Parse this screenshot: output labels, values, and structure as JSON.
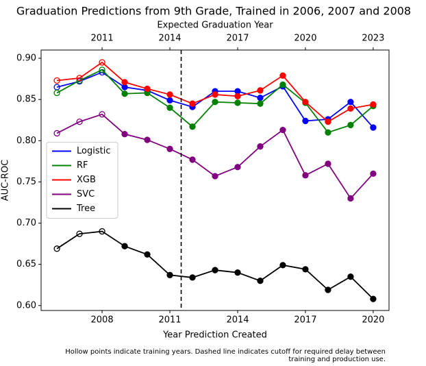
{
  "chart_data": {
    "type": "line",
    "title": "Graduation Predictions from 9th Grade, Trained in 2006, 2007 and 2008",
    "xlabel": "Year Prediction Created",
    "ylabel": "AUC-ROC",
    "x2label": "Expected Graduation Year",
    "footnote": [
      "Hollow points indicate training years. Dashed line indicates cutoff for required delay between",
      "training and production use."
    ],
    "x": [
      2006,
      2007,
      2008,
      2009,
      2010,
      2011,
      2012,
      2013,
      2014,
      2015,
      2016,
      2017,
      2018,
      2019,
      2020
    ],
    "series": [
      {
        "name": "Logistic",
        "color": "#0000ff",
        "values": [
          0.865,
          0.872,
          0.883,
          0.865,
          0.861,
          0.849,
          0.841,
          0.86,
          0.86,
          0.852,
          0.866,
          0.824,
          0.826,
          0.847,
          0.816
        ]
      },
      {
        "name": "RF",
        "color": "#008000",
        "values": [
          0.858,
          0.873,
          0.886,
          0.857,
          0.858,
          0.84,
          0.817,
          0.847,
          0.846,
          0.845,
          0.868,
          0.846,
          0.81,
          0.819,
          0.842
        ]
      },
      {
        "name": "XGB",
        "color": "#ff0000",
        "values": [
          0.873,
          0.876,
          0.895,
          0.871,
          0.863,
          0.856,
          0.845,
          0.856,
          0.854,
          0.861,
          0.879,
          0.847,
          0.823,
          0.839,
          0.844
        ]
      },
      {
        "name": "SVC",
        "color": "#800080",
        "values": [
          0.809,
          0.823,
          0.832,
          0.808,
          0.801,
          0.79,
          0.777,
          0.757,
          0.768,
          0.793,
          0.813,
          0.758,
          0.772,
          0.73,
          0.76
        ]
      },
      {
        "name": "Tree",
        "color": "#000000",
        "values": [
          0.669,
          0.687,
          0.69,
          0.672,
          0.662,
          0.637,
          0.634,
          0.643,
          0.64,
          0.63,
          0.649,
          0.644,
          0.619,
          0.635,
          0.608
        ]
      }
    ],
    "hollow_x_max": 2008,
    "cutoff_x": 2011.5,
    "xlim": [
      2005.3,
      2020.7
    ],
    "xticks": [
      2008,
      2011,
      2014,
      2017,
      2020
    ],
    "x2lim": [
      2008.3,
      2023.7
    ],
    "x2ticks": [
      2011,
      2014,
      2017,
      2020,
      2023
    ],
    "ylim": [
      0.594,
      0.91
    ],
    "yticks": [
      {
        "value": 0.6,
        "label": "0.60"
      },
      {
        "value": 0.65,
        "label": "0.65"
      },
      {
        "value": 0.7,
        "label": "0.70"
      },
      {
        "value": 0.75,
        "label": "0.75"
      },
      {
        "value": 0.8,
        "label": "0.80"
      },
      {
        "value": 0.85,
        "label": "0.85"
      },
      {
        "value": 0.9,
        "label": "0.90"
      }
    ],
    "legend": "center left"
  }
}
